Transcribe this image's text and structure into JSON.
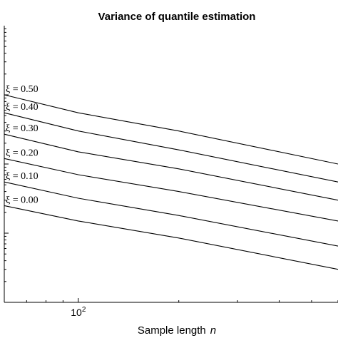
{
  "chart_data": {
    "type": "line",
    "title": "Variance of quantile estimation",
    "xlabel": "Sample length",
    "xlabel_var": "n",
    "ylabel": "",
    "x_scale": "log",
    "y_scale": "log",
    "xlim": [
      60,
      600
    ],
    "ylim": [
      0.001,
      10
    ],
    "x_ticks": [
      {
        "value": 100,
        "label_base": "10",
        "label_exp": "2"
      }
    ],
    "grid": false,
    "legend": "none",
    "series": [
      {
        "name": "ξ = 0.50",
        "x": [
          60,
          100,
          200,
          600
        ],
        "y": [
          1.0,
          0.55,
          0.3,
          0.1
        ]
      },
      {
        "name": "ξ = 0.40",
        "x": [
          60,
          100,
          200,
          600
        ],
        "y": [
          0.55,
          0.3,
          0.16,
          0.055
        ]
      },
      {
        "name": "ξ = 0.30",
        "x": [
          60,
          100,
          200,
          600
        ],
        "y": [
          0.27,
          0.15,
          0.085,
          0.03
        ]
      },
      {
        "name": "ξ = 0.20",
        "x": [
          60,
          100,
          200,
          600
        ],
        "y": [
          0.12,
          0.07,
          0.04,
          0.015
        ]
      },
      {
        "name": "ξ = 0.10",
        "x": [
          60,
          100,
          200,
          600
        ],
        "y": [
          0.055,
          0.032,
          0.018,
          0.0065
        ]
      },
      {
        "name": "ξ = 0.00",
        "x": [
          60,
          100,
          200,
          600
        ],
        "y": [
          0.025,
          0.015,
          0.0085,
          0.003
        ]
      }
    ]
  }
}
